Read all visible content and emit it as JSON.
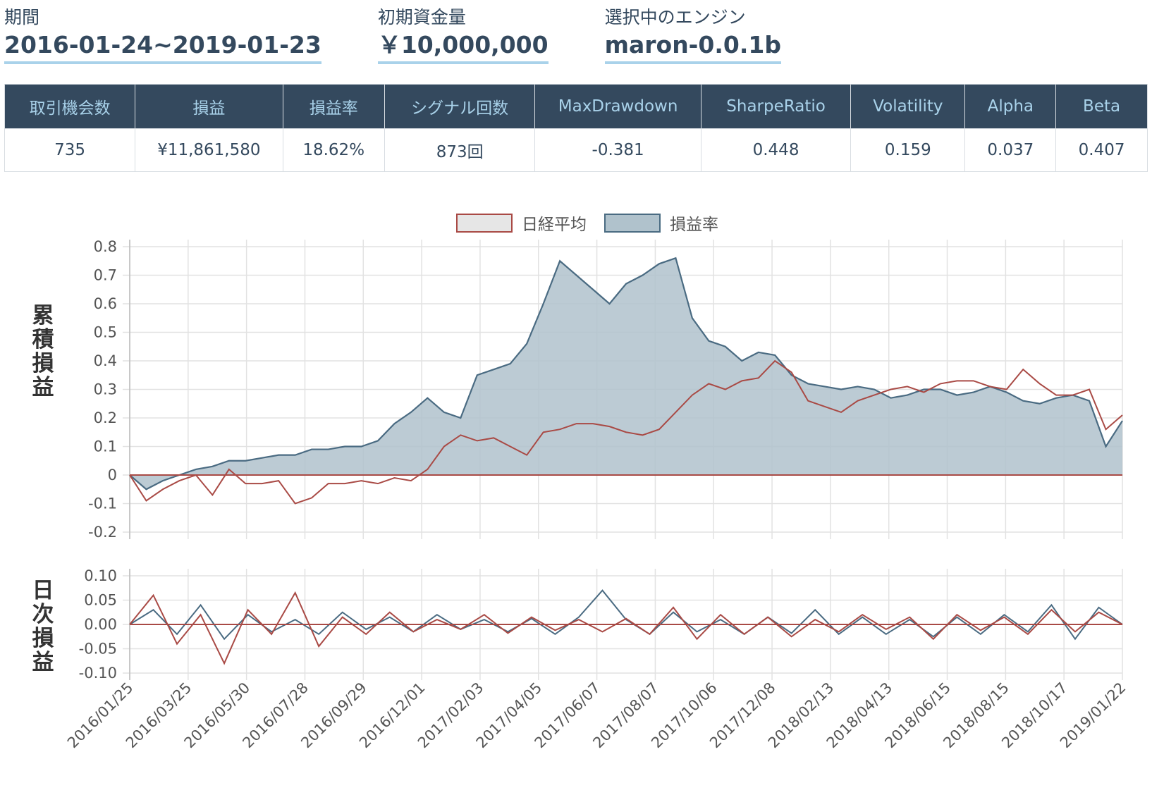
{
  "summary": {
    "period_label": "期間",
    "period_value": "2016-01-24~2019-01-23",
    "capital_label": "初期資金量",
    "capital_value": "￥10,000,000",
    "engine_label": "選択中のエンジン",
    "engine_value": "maron-0.0.1b"
  },
  "stats": {
    "headers": [
      "取引機会数",
      "損益",
      "損益率",
      "シグナル回数",
      "MaxDrawdown",
      "SharpeRatio",
      "Volatility",
      "Alpha",
      "Beta"
    ],
    "values": [
      "735",
      "¥11,861,580",
      "18.62%",
      "873回",
      "-0.381",
      "0.448",
      "0.159",
      "0.037",
      "0.407"
    ]
  },
  "colors": {
    "nikkei": "#a94a45",
    "pnl": "#4a6b82",
    "pnl_fill": "#b0c2cc",
    "header_bg": "#34495e",
    "header_text": "#a9d2ea"
  },
  "chart_data": [
    {
      "type": "area",
      "ylabel": "累積損益",
      "ylim": [
        -0.2,
        0.8
      ],
      "yticks": [
        "0.8",
        "0.7",
        "0.6",
        "0.5",
        "0.4",
        "0.3",
        "0.2",
        "0.1",
        "0",
        "-0.1",
        "-0.2"
      ],
      "x_ticks": [
        "2016/01/25",
        "2016/03/25",
        "2016/05/30",
        "2016/07/28",
        "2016/09/29",
        "2016/12/01",
        "2017/02/03",
        "2017/04/05",
        "2017/06/07",
        "2017/08/07",
        "2017/10/06",
        "2017/12/08",
        "2018/02/13",
        "2018/04/13",
        "2018/06/15",
        "2018/08/15",
        "2018/10/17",
        "2019/01/22"
      ],
      "legend_position": "top",
      "series": [
        {
          "name": "日経平均",
          "values": [
            0.0,
            -0.09,
            -0.05,
            -0.02,
            0.0,
            -0.07,
            0.02,
            -0.03,
            -0.03,
            -0.02,
            -0.1,
            -0.08,
            -0.03,
            -0.03,
            -0.02,
            -0.03,
            -0.01,
            -0.02,
            0.02,
            0.1,
            0.14,
            0.12,
            0.13,
            0.1,
            0.07,
            0.15,
            0.16,
            0.18,
            0.18,
            0.17,
            0.15,
            0.14,
            0.16,
            0.22,
            0.28,
            0.32,
            0.3,
            0.33,
            0.34,
            0.4,
            0.36,
            0.26,
            0.24,
            0.22,
            0.26,
            0.28,
            0.3,
            0.31,
            0.29,
            0.32,
            0.33,
            0.33,
            0.31,
            0.3,
            0.37,
            0.32,
            0.28,
            0.28,
            0.3,
            0.16,
            0.21
          ]
        },
        {
          "name": "損益率",
          "values": [
            0.0,
            -0.05,
            -0.02,
            0.0,
            0.02,
            0.03,
            0.05,
            0.05,
            0.06,
            0.07,
            0.07,
            0.09,
            0.09,
            0.1,
            0.1,
            0.12,
            0.18,
            0.22,
            0.27,
            0.22,
            0.2,
            0.35,
            0.37,
            0.39,
            0.46,
            0.6,
            0.75,
            0.7,
            0.65,
            0.6,
            0.67,
            0.7,
            0.74,
            0.76,
            0.55,
            0.47,
            0.45,
            0.4,
            0.43,
            0.42,
            0.35,
            0.32,
            0.31,
            0.3,
            0.31,
            0.3,
            0.27,
            0.28,
            0.3,
            0.3,
            0.28,
            0.29,
            0.31,
            0.29,
            0.26,
            0.25,
            0.27,
            0.28,
            0.26,
            0.1,
            0.19
          ]
        }
      ]
    },
    {
      "type": "line",
      "ylabel": "日次損益",
      "ylim": [
        -0.1,
        0.1
      ],
      "yticks": [
        "0.10",
        "0.05",
        "0.00",
        "-0.05",
        "-0.10"
      ],
      "series": [
        {
          "name": "日経平均",
          "values": [
            0.0,
            0.06,
            -0.04,
            0.02,
            -0.08,
            0.03,
            -0.02,
            0.065,
            -0.045,
            0.015,
            -0.02,
            0.025,
            -0.015,
            0.01,
            -0.01,
            0.02,
            -0.018,
            0.015,
            -0.012,
            0.01,
            -0.015,
            0.012,
            -0.02,
            0.035,
            -0.03,
            0.02,
            -0.02,
            0.015,
            -0.025,
            0.01,
            -0.015,
            0.02,
            -0.01,
            0.015,
            -0.03,
            0.02,
            -0.012,
            0.015,
            -0.02,
            0.03,
            -0.015,
            0.025,
            0.0
          ]
        },
        {
          "name": "損益率",
          "values": [
            0.0,
            0.03,
            -0.02,
            0.04,
            -0.03,
            0.02,
            -0.015,
            0.01,
            -0.02,
            0.025,
            -0.01,
            0.015,
            -0.015,
            0.02,
            -0.01,
            0.01,
            -0.015,
            0.012,
            -0.02,
            0.015,
            0.07,
            0.01,
            -0.02,
            0.025,
            -0.015,
            0.01,
            -0.02,
            0.015,
            -0.018,
            0.03,
            -0.02,
            0.015,
            -0.02,
            0.01,
            -0.025,
            0.015,
            -0.02,
            0.02,
            -0.015,
            0.04,
            -0.03,
            0.035,
            0.0
          ]
        }
      ]
    }
  ]
}
